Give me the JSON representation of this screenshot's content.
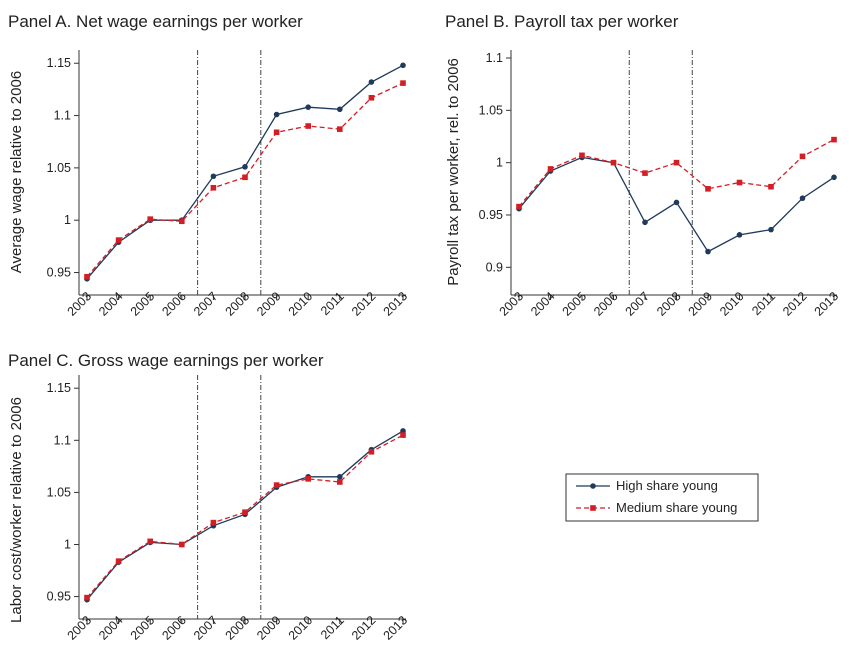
{
  "legend": {
    "high_label": "High share young",
    "medium_label": "Medium share young",
    "high_color": "#1f3a5a",
    "medium_color": "#d21f26"
  },
  "chart_data": [
    {
      "type": "line",
      "title": "Panel A. Net wage earnings per worker",
      "xlabel": "",
      "ylabel": "Average wage relative to 2006",
      "categories": [
        "2003",
        "2004",
        "2005",
        "2006",
        "2007",
        "2008",
        "2009",
        "2010",
        "2011",
        "2012",
        "2013"
      ],
      "yticks": [
        "0.95",
        "1",
        "1.05",
        "1.1",
        "1.15"
      ],
      "ylim": [
        0.94,
        1.155
      ],
      "vlines": [
        "2006.5",
        "2008.5"
      ],
      "series": [
        {
          "name": "High share young",
          "values": [
            0.944,
            0.979,
            1.0,
            1.0,
            1.042,
            1.051,
            1.101,
            1.108,
            1.106,
            1.132,
            1.148
          ]
        },
        {
          "name": "Medium share young",
          "values": [
            0.946,
            0.981,
            1.001,
            0.999,
            1.031,
            1.041,
            1.084,
            1.09,
            1.087,
            1.117,
            1.131
          ]
        }
      ]
    },
    {
      "type": "line",
      "title": "Panel B. Payroll tax per worker",
      "xlabel": "",
      "ylabel": "Payroll tax per worker, rel. to 2006",
      "categories": [
        "2003",
        "2004",
        "2005",
        "2006",
        "2007",
        "2008",
        "2009",
        "2010",
        "2011",
        "2012",
        "2013"
      ],
      "yticks": [
        "0.9",
        "0.95",
        "1",
        "1.05",
        "1.1"
      ],
      "ylim": [
        0.885,
        1.1
      ],
      "vlines": [
        "2006.5",
        "2008.5"
      ],
      "series": [
        {
          "name": "High share young",
          "values": [
            0.956,
            0.992,
            1.005,
            1.0,
            0.943,
            0.962,
            0.915,
            0.931,
            0.936,
            0.966,
            0.986
          ]
        },
        {
          "name": "Medium share young",
          "values": [
            0.958,
            0.994,
            1.007,
            1.0,
            0.99,
            1.0,
            0.975,
            0.981,
            0.977,
            1.006,
            1.022
          ]
        }
      ]
    },
    {
      "type": "line",
      "title": "Panel C. Gross wage earnings per worker",
      "xlabel": "",
      "ylabel": "Labor cost/worker relative to 2006",
      "categories": [
        "2003",
        "2004",
        "2005",
        "2006",
        "2007",
        "2008",
        "2009",
        "2010",
        "2011",
        "2012",
        "2013"
      ],
      "yticks": [
        "0.95",
        "1",
        "1.05",
        "1.1",
        "1.15"
      ],
      "ylim": [
        0.94,
        1.155
      ],
      "vlines": [
        "2006.5",
        "2008.5"
      ],
      "series": [
        {
          "name": "High share young",
          "values": [
            0.947,
            0.983,
            1.002,
            1.0,
            1.018,
            1.029,
            1.055,
            1.065,
            1.065,
            1.091,
            1.109
          ]
        },
        {
          "name": "Medium share young",
          "values": [
            0.949,
            0.984,
            1.003,
            1.0,
            1.021,
            1.031,
            1.057,
            1.063,
            1.06,
            1.089,
            1.105
          ]
        }
      ]
    }
  ]
}
